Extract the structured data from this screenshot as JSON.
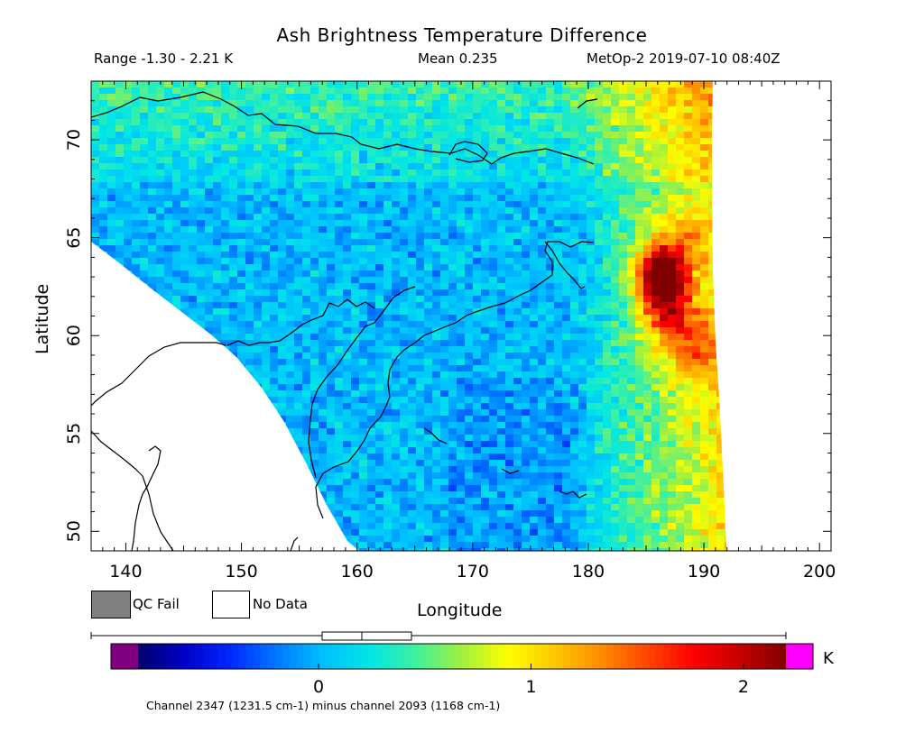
{
  "header": {
    "title": "Ash Brightness Temperature Difference",
    "range": "Range -1.30 - 2.21 K",
    "mean": "Mean 0.235",
    "satellite_time": "MetOp-2 2019-07-10 08:40Z"
  },
  "legend": {
    "qc_fail_label": "QC Fail",
    "no_data_label": "No Data",
    "qc_fail_color": "#808080",
    "no_data_color": "#ffffff"
  },
  "colorbar": {
    "unit": "K",
    "tick_values": [
      0,
      1,
      2
    ],
    "tick_labels": [
      "0",
      "1",
      "2"
    ],
    "vmin": -0.85,
    "vmax": 2.2,
    "under_color": "#800080",
    "over_color": "#ff00ff",
    "colors": [
      "#00006e",
      "#0000c8",
      "#0028ff",
      "#0078ff",
      "#00c0ff",
      "#00e6e6",
      "#40f0a0",
      "#a0f040",
      "#ffff00",
      "#ffc800",
      "#ff8c00",
      "#ff4600",
      "#ff0000",
      "#c80000",
      "#800000"
    ],
    "boxplot": {
      "min": -1.3,
      "q1": 0.0,
      "median": 0.19,
      "q3": 0.43,
      "max": 2.21
    },
    "footnote": "Channel 2347 (1231.5 cm-1) minus channel 2093 (1168 cm-1)"
  },
  "chart_data": {
    "type": "heatmap",
    "title": "Ash Brightness Temperature Difference",
    "xlabel": "Longitude",
    "ylabel": "Latitude",
    "xlim": [
      137,
      201
    ],
    "ylim": [
      49,
      73
    ],
    "x_ticks": [
      140,
      150,
      160,
      170,
      180,
      190,
      200
    ],
    "y_ticks": [
      50,
      55,
      60,
      65,
      70
    ],
    "x_tick_labels": [
      "140",
      "150",
      "160",
      "170",
      "180",
      "190",
      "200"
    ],
    "y_tick_labels": [
      "50",
      "55",
      "60",
      "65",
      "70"
    ],
    "value_range": [
      -1.3,
      2.21
    ],
    "mean": 0.235,
    "units": "K",
    "hotspots": [
      {
        "lon": 186.5,
        "lat": 62.8,
        "value": 2.2
      },
      {
        "lon": 187.0,
        "lat": 60.8,
        "value": 1.8
      },
      {
        "lon": 186.0,
        "lat": 63.5,
        "value": 1.6
      },
      {
        "lon": 189.5,
        "lat": 59.2,
        "value": 1.5
      },
      {
        "lon": 188.5,
        "lat": 65.0,
        "value": 1.3
      }
    ]
  }
}
